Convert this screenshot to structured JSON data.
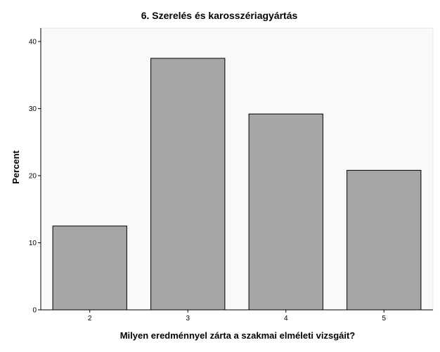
{
  "chart_data": {
    "type": "bar",
    "title": "6. Szerelés és karosszériagyártás",
    "xlabel": "Milyen eredménnyel zárta a szakmai elméleti vizsgáit?",
    "ylabel": "Percent",
    "categories": [
      "2",
      "3",
      "4",
      "5"
    ],
    "values": [
      12.5,
      37.5,
      29.2,
      20.8
    ],
    "ylim": [
      0,
      42
    ],
    "yticks": [
      "0",
      "10",
      "20",
      "30",
      "40"
    ],
    "grid": false,
    "legend": "none",
    "colors": {
      "bar_fill": "#a6a6a6",
      "bar_stroke": "#000000",
      "plot_background": "#f9f9f9",
      "axis": "#000000"
    }
  }
}
